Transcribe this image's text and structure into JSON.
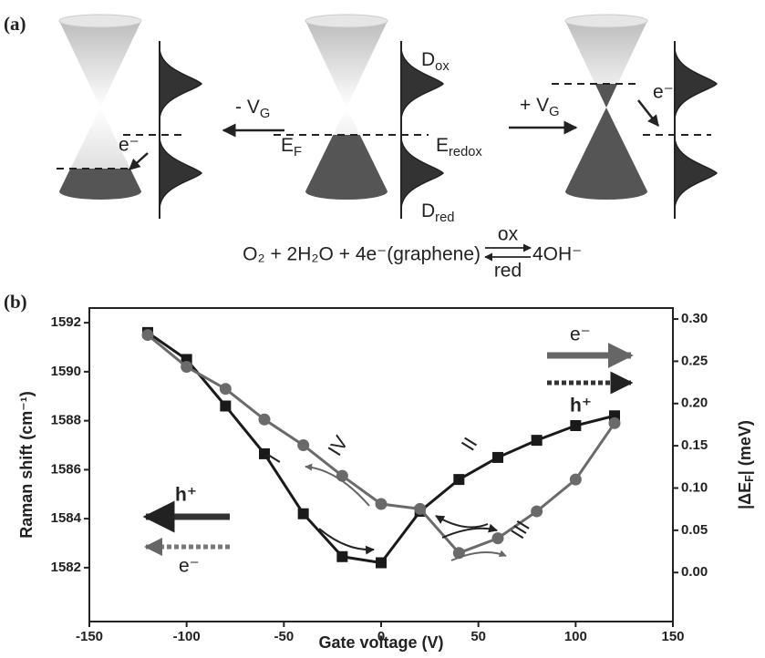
{
  "panel_a": {
    "panel_label": "(a)",
    "minus_vg": {
      "text": "- V",
      "sub": "G"
    },
    "plus_vg": {
      "text": "+ V",
      "sub": "G"
    },
    "e_f": {
      "text": "E",
      "sub": "F"
    },
    "e_redox": {
      "text": "E",
      "sub": "redox"
    },
    "d_ox": {
      "text": "D",
      "sub": "ox"
    },
    "d_red": {
      "text": "D",
      "sub": "red"
    },
    "electron_labels": [
      "e⁻",
      "e⁻"
    ],
    "equation": {
      "left": "O₂ + 2H₂O + 4e⁻(graphene)",
      "right": "4OH⁻",
      "forward": "ox",
      "reverse": "red"
    }
  },
  "chart_data": {
    "type": "line",
    "panel_label": "(b)",
    "x_label": "Gate voltage (V)",
    "y_label": "Raman shift (cm⁻¹)",
    "y2_label": {
      "text": "|ΔE",
      "sub": "F",
      "after": "| (meV)"
    },
    "x": [
      -120,
      -100,
      -80,
      -60,
      -40,
      -20,
      0,
      20,
      40,
      60,
      80,
      100,
      120
    ],
    "series": [
      {
        "color": "#1a1a1a",
        "marker": "square",
        "values": [
          1591.6,
          1590.5,
          1588.6,
          1586.65,
          1584.2,
          1582.45,
          1582.2,
          1584.3,
          1585.6,
          1586.5,
          1587.2,
          1587.8,
          1588.2
        ]
      },
      {
        "color": "#6a6a6a",
        "marker": "circle",
        "values": [
          1591.5,
          1590.2,
          1589.3,
          1588.05,
          1587.0,
          1585.75,
          1584.6,
          1584.4,
          1582.6,
          1583.2,
          1584.3,
          1585.6,
          1587.9
        ]
      }
    ],
    "xlim": [
      -150,
      150
    ],
    "xticks": [
      -150,
      -100,
      -50,
      0,
      50,
      100,
      150
    ],
    "ylim": [
      1579.8,
      1592.6
    ],
    "yticks": [
      1582,
      1584,
      1586,
      1588,
      1590,
      1592
    ],
    "y2lim": [
      -0.058,
      0.313
    ],
    "y2ticks": [
      {
        "value": 0,
        "label": "0.00"
      },
      {
        "value": 0.05,
        "label": "0.05"
      },
      {
        "value": 0.1,
        "label": "0.10"
      },
      {
        "value": 0.15,
        "label": "0.15"
      },
      {
        "value": 0.2,
        "label": "0.20"
      },
      {
        "value": 0.25,
        "label": "0.25"
      },
      {
        "value": 0.3,
        "label": "0.30"
      }
    ],
    "annotations": {
      "segments": [
        "I",
        "II",
        "III",
        "IV"
      ],
      "carriers_right": [
        "e⁻",
        "h⁺"
      ],
      "carriers_left": [
        "h⁺",
        "e⁻"
      ]
    }
  }
}
